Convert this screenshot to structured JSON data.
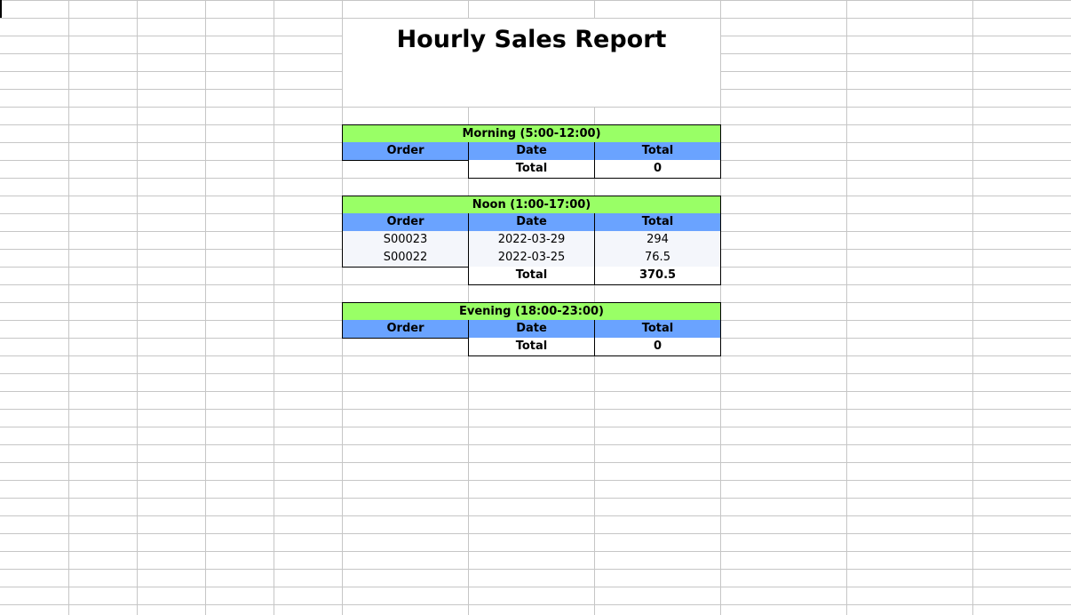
{
  "report": {
    "title": "Hourly Sales Report"
  },
  "sections": {
    "morning": {
      "label": "Morning (5:00-12:00)",
      "headers": {
        "order": "Order",
        "date": "Date",
        "total": "Total"
      },
      "rows": [],
      "footer": {
        "label": "Total",
        "value": "0"
      }
    },
    "noon": {
      "label": "Noon (1:00-17:00)",
      "headers": {
        "order": "Order",
        "date": "Date",
        "total": "Total"
      },
      "rows": [
        {
          "order": "S00023",
          "date": "2022-03-29",
          "total": "294"
        },
        {
          "order": "S00022",
          "date": "2022-03-25",
          "total": "76.5"
        }
      ],
      "footer": {
        "label": "Total",
        "value": "370.5"
      }
    },
    "evening": {
      "label": "Evening (18:00-23:00)",
      "headers": {
        "order": "Order",
        "date": "Date",
        "total": "Total"
      },
      "rows": [],
      "footer": {
        "label": "Total",
        "value": "0"
      }
    }
  },
  "colors": {
    "section_header_bg": "#99ff66",
    "column_header_bg": "#6aa3ff",
    "data_row_bg": "#f4f6fb",
    "gridline": "#c6c6c6"
  }
}
